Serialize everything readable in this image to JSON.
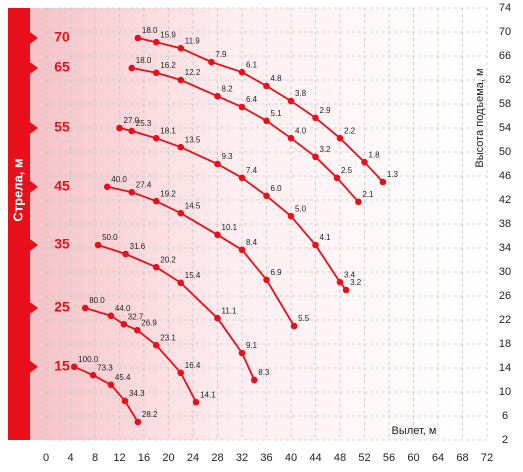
{
  "chart_data": {
    "type": "line",
    "boom_label": "Стрела, м",
    "xlabel": "Вылет, м",
    "ylabel": "Высота подъема, м",
    "xlim": [
      0,
      72
    ],
    "ylim": [
      2,
      74
    ],
    "xticks": [
      0,
      4,
      8,
      12,
      16,
      20,
      24,
      28,
      32,
      36,
      40,
      44,
      48,
      52,
      56,
      60,
      64,
      68,
      72
    ],
    "yticks": [
      2,
      6,
      10,
      14,
      18,
      22,
      26,
      30,
      34,
      38,
      42,
      46,
      50,
      54,
      58,
      62,
      66,
      70,
      74
    ],
    "grid": true,
    "color": "#e8101a",
    "series": [
      {
        "name": "70",
        "x": [
          15,
          18,
          22,
          27,
          32,
          36,
          40,
          44,
          48,
          52,
          55
        ],
        "values": [
          69,
          68.3,
          67.3,
          65,
          63.3,
          61,
          58.5,
          55.7,
          52.3,
          48.3,
          45
        ],
        "point_labels": [
          "18.0",
          "15.9",
          "11.9",
          "7.9",
          "6.1",
          "4.8",
          "3.8",
          "2.9",
          "2.2",
          "1.8",
          "1.3"
        ]
      },
      {
        "name": "65",
        "x": [
          14,
          18,
          22,
          28,
          32,
          36,
          40,
          44,
          47.5,
          51
        ],
        "values": [
          64,
          63.2,
          62,
          59.3,
          57.5,
          55.2,
          52.3,
          49.2,
          45.7,
          41.7
        ],
        "point_labels": [
          "18.0",
          "16.2",
          "12.2",
          "8.2",
          "6.4",
          "5.1",
          "4.0",
          "3.2",
          "2.5",
          "2.1"
        ]
      },
      {
        "name": "55",
        "x": [
          12,
          14,
          18,
          22,
          28,
          32,
          36,
          40,
          44,
          48,
          49
        ],
        "values": [
          54,
          53.5,
          52.3,
          50.8,
          48,
          45.7,
          42.7,
          39.3,
          34.5,
          28.3,
          27
        ],
        "point_labels": [
          "27.0",
          "25.3",
          "18.1",
          "13.5",
          "9.3",
          "7.4",
          "6.0",
          "5.0",
          "4.1",
          "3.4",
          "3.2"
        ]
      },
      {
        "name": "45",
        "x": [
          10,
          14,
          18,
          22,
          28,
          32,
          36,
          40.5
        ],
        "values": [
          44.2,
          43.3,
          41.8,
          39.8,
          36.2,
          33.7,
          28.7,
          21
        ],
        "point_labels": [
          "40.0",
          "27.4",
          "19.2",
          "14.5",
          "10.1",
          "8.4",
          "6.9",
          "5.5"
        ]
      },
      {
        "name": "35",
        "x": [
          8.5,
          13,
          18,
          22,
          28,
          32,
          34
        ],
        "values": [
          34.5,
          33,
          30.8,
          28.2,
          22.3,
          16.5,
          12
        ],
        "point_labels": [
          "50.0",
          "31.6",
          "20.2",
          "15.4",
          "11.1",
          "9.1",
          "8.3"
        ]
      },
      {
        "name": "25",
        "x": [
          6.4,
          10.6,
          12.7,
          14.9,
          18,
          22,
          24.5
        ],
        "values": [
          24,
          22.7,
          21.3,
          20.3,
          17.8,
          13.2,
          8.3
        ],
        "point_labels": [
          "80.0",
          "44.0",
          "32.7",
          "26.9",
          "23.1",
          "16.4",
          "14.1"
        ]
      },
      {
        "name": "15",
        "x": [
          4.6,
          7.7,
          10.6,
          12.9,
          15
        ],
        "values": [
          14.2,
          12.8,
          11.2,
          8.5,
          5
        ],
        "point_labels": [
          "100.0",
          "73.3",
          "45.4",
          "34.3",
          "28.2"
        ]
      }
    ]
  }
}
